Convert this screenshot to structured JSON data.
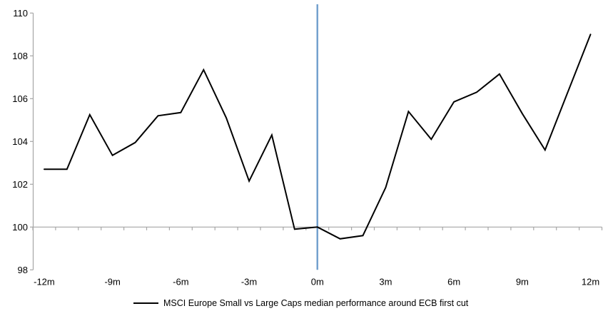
{
  "chart_data": {
    "type": "line",
    "title": "",
    "xlabel": "",
    "ylabel": "",
    "x_months": [
      -12,
      -11,
      -10,
      -9,
      -8,
      -7,
      -6,
      -5,
      -4,
      -3,
      -2,
      -1,
      0,
      1,
      2,
      3,
      4,
      5,
      6,
      7,
      8,
      9,
      10,
      11,
      12
    ],
    "x_tick_months": [
      -12,
      -9,
      -6,
      -3,
      0,
      3,
      6,
      9,
      12
    ],
    "x_tick_labels": [
      "-12m",
      "-9m",
      "-6m",
      "-3m",
      "0m",
      "3m",
      "6m",
      "9m",
      "12m"
    ],
    "y_ticks": [
      98,
      100,
      102,
      104,
      106,
      108,
      110
    ],
    "y_tick_labels": [
      "98",
      "100",
      "102",
      "104",
      "106",
      "108",
      "110"
    ],
    "ylim": [
      98,
      110
    ],
    "x_axis_crosses_at": 100,
    "grid": "off",
    "legend_position": "bottom",
    "series": [
      {
        "name": "MSCI Europe Small vs Large Caps median performance around ECB first cut",
        "color": "#000000",
        "values": [
          102.7,
          102.7,
          105.25,
          103.35,
          103.95,
          105.2,
          105.35,
          107.35,
          105.1,
          102.15,
          104.3,
          99.9,
          100.0,
          99.45,
          99.6,
          101.85,
          105.4,
          104.1,
          105.85,
          106.3,
          107.15,
          105.3,
          103.6,
          106.3,
          109.0
        ]
      }
    ],
    "event_line": {
      "at_month": 0,
      "color": "#74a1ce"
    },
    "axis_color": "#a6a6a6"
  }
}
